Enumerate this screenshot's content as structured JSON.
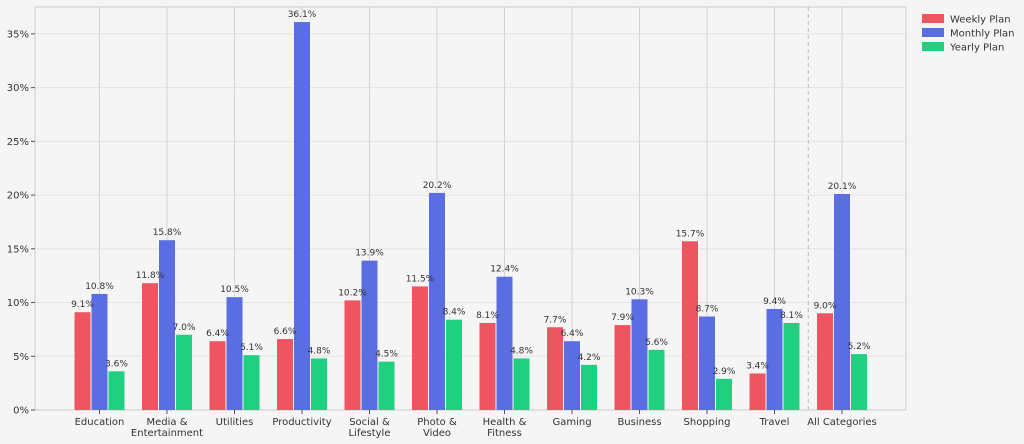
{
  "chart_data": {
    "type": "bar",
    "title": "",
    "xlabel": "",
    "ylabel": "",
    "ylim": [
      0,
      37.5
    ],
    "yticks": [
      0,
      5,
      10,
      15,
      20,
      25,
      30,
      35
    ],
    "ytick_suffix": "%",
    "value_suffix": "%",
    "grid": true,
    "legend_position": "top-right",
    "categories": [
      [
        "Education"
      ],
      [
        "Media &",
        "Entertainment"
      ],
      [
        "Utilities"
      ],
      [
        "Productivity"
      ],
      [
        "Social &",
        "Lifestyle"
      ],
      [
        "Photo &",
        "Video"
      ],
      [
        "Health &",
        "Fitness"
      ],
      [
        "Gaming"
      ],
      [
        "Business"
      ],
      [
        "Shopping"
      ],
      [
        "Travel"
      ],
      [
        "All Categories"
      ]
    ],
    "series": [
      {
        "name": "Weekly Plan",
        "color": "#ef5560",
        "values": [
          9.1,
          11.8,
          6.4,
          6.6,
          10.2,
          11.5,
          8.1,
          7.7,
          7.9,
          15.7,
          3.4,
          9.0
        ]
      },
      {
        "name": "Monthly Plan",
        "color": "#5b6ee1",
        "values": [
          10.8,
          15.8,
          10.5,
          36.1,
          13.9,
          20.2,
          12.4,
          6.4,
          10.3,
          8.7,
          9.4,
          20.1
        ]
      },
      {
        "name": "Yearly Plan",
        "color": "#1ed07f",
        "values": [
          3.6,
          7.0,
          5.1,
          4.8,
          4.5,
          8.4,
          4.8,
          4.2,
          5.6,
          2.9,
          8.1,
          5.2
        ]
      }
    ]
  }
}
